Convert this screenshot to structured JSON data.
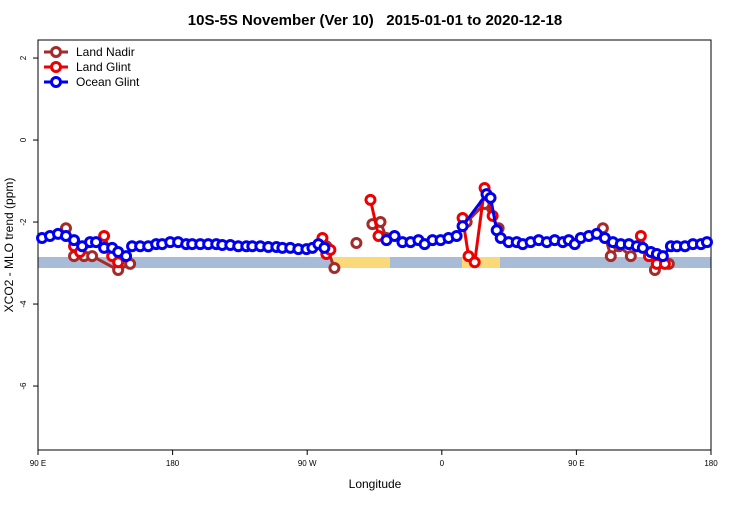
{
  "chart_data": {
    "type": "line",
    "title": "10S-5S November (Ver 10)   2015-01-01 to 2020-12-18",
    "xlabel": "Longitude",
    "ylabel": "XCO2 - MLO trend (ppm)",
    "xlim": [
      90,
      540
    ],
    "ylim": [
      -7.56,
      2.44
    ],
    "xticks": [
      {
        "value": 90,
        "label": "90 E"
      },
      180,
      {
        "value": 270,
        "label": "90 W"
      },
      {
        "value": 360,
        "label": "0"
      },
      {
        "value": 450,
        "label": "90 E"
      },
      {
        "value": 540,
        "label": "180"
      }
    ],
    "yticks": [
      2,
      0,
      -2,
      -4,
      -6
    ],
    "legend": "top-left",
    "series": [
      {
        "name": "Land Nadir",
        "color": "#a52a2a",
        "x": [
          108.7,
          114.1,
          120.8,
          126.2,
          143.6,
          151.6,
          null,
          282.8,
          288.2,
          null,
          302.9,
          null,
          313.6,
          319.0,
          323.0,
          null,
          376.6,
          388.6,
          398.0,
          null,
          467.7,
          473.0,
          478.4,
          486.4,
          null,
          502.5,
          511.8
        ],
        "values": [
          -2.15,
          -2.83,
          -2.83,
          -2.83,
          -3.17,
          -3.02,
          null,
          -2.59,
          -3.12,
          null,
          -2.51,
          null,
          -2.05,
          -2.0,
          -2.39,
          null,
          -2.0,
          -1.56,
          -2.15,
          null,
          -2.15,
          -2.83,
          -2.59,
          -2.83,
          null,
          -3.17,
          -3.02
        ]
      },
      {
        "name": "Land Glint",
        "color": "#ee0000",
        "x": [
          114.1,
          118.1,
          134.2,
          139.6,
          143.6,
          null,
          280.2,
          282.8,
          285.5,
          null,
          312.3,
          317.7,
          null,
          373.9,
          377.9,
          382.0,
          388.6,
          394.0,
          null,
          493.1,
          498.5,
          503.8,
          509.2
        ],
        "values": [
          -2.59,
          -2.73,
          -2.34,
          -2.83,
          -2.98,
          null,
          -2.39,
          -2.78,
          -2.68,
          null,
          -1.46,
          -2.34,
          null,
          -1.9,
          -2.83,
          -2.98,
          -1.17,
          -1.85,
          null,
          -2.34,
          -2.83,
          -3.02,
          -3.02
        ]
      },
      {
        "name": "Ocean Glint",
        "color": "#0000ee",
        "x": [
          92.7,
          98.0,
          103.4,
          108.7,
          114.1,
          119.5,
          124.8,
          128.8,
          134.2,
          139.6,
          143.6,
          148.9,
          152.9,
          158.3,
          163.7,
          169.0,
          173.0,
          178.4,
          183.7,
          189.1,
          193.1,
          198.5,
          203.8,
          209.2,
          213.2,
          218.6,
          223.9,
          229.3,
          233.3,
          238.7,
          244.0,
          249.4,
          253.4,
          258.7,
          264.1,
          269.5,
          273.5,
          277.5,
          281.5,
          null,
          323.0,
          328.4,
          333.7,
          339.1,
          344.4,
          348.5,
          353.8,
          359.2,
          364.5,
          369.9,
          373.9,
          389.9,
          392.6,
          396.7,
          399.4,
          404.7,
          410.1,
          414.1,
          419.4,
          424.8,
          430.2,
          435.5,
          440.9,
          444.9,
          448.9,
          452.9,
          458.3,
          463.6,
          469.0,
          474.4,
          479.7,
          485.1,
          490.4,
          494.4,
          499.8,
          503.8,
          507.8,
          513.2,
          517.2,
          522.6,
          527.9,
          533.3,
          537.3
        ],
        "values": [
          -2.39,
          -2.34,
          -2.29,
          -2.34,
          -2.44,
          -2.59,
          -2.49,
          -2.49,
          -2.63,
          -2.63,
          -2.73,
          -2.83,
          -2.59,
          -2.59,
          -2.59,
          -2.54,
          -2.54,
          -2.49,
          -2.49,
          -2.54,
          -2.54,
          -2.54,
          -2.54,
          -2.54,
          -2.56,
          -2.56,
          -2.59,
          -2.59,
          -2.59,
          -2.59,
          -2.61,
          -2.61,
          -2.63,
          -2.63,
          -2.66,
          -2.66,
          -2.63,
          -2.54,
          -2.63,
          null,
          -2.44,
          -2.34,
          -2.49,
          -2.49,
          -2.44,
          -2.54,
          -2.44,
          -2.44,
          -2.39,
          -2.34,
          -2.1,
          -1.32,
          -1.41,
          -2.2,
          -2.39,
          -2.49,
          -2.49,
          -2.54,
          -2.49,
          -2.44,
          -2.49,
          -2.44,
          -2.49,
          -2.44,
          -2.54,
          -2.39,
          -2.34,
          -2.29,
          -2.39,
          -2.49,
          -2.54,
          -2.54,
          -2.59,
          -2.63,
          -2.73,
          -2.78,
          -2.83,
          -2.59,
          -2.59,
          -2.59,
          -2.54,
          -2.54,
          -2.49
        ]
      }
    ]
  }
}
